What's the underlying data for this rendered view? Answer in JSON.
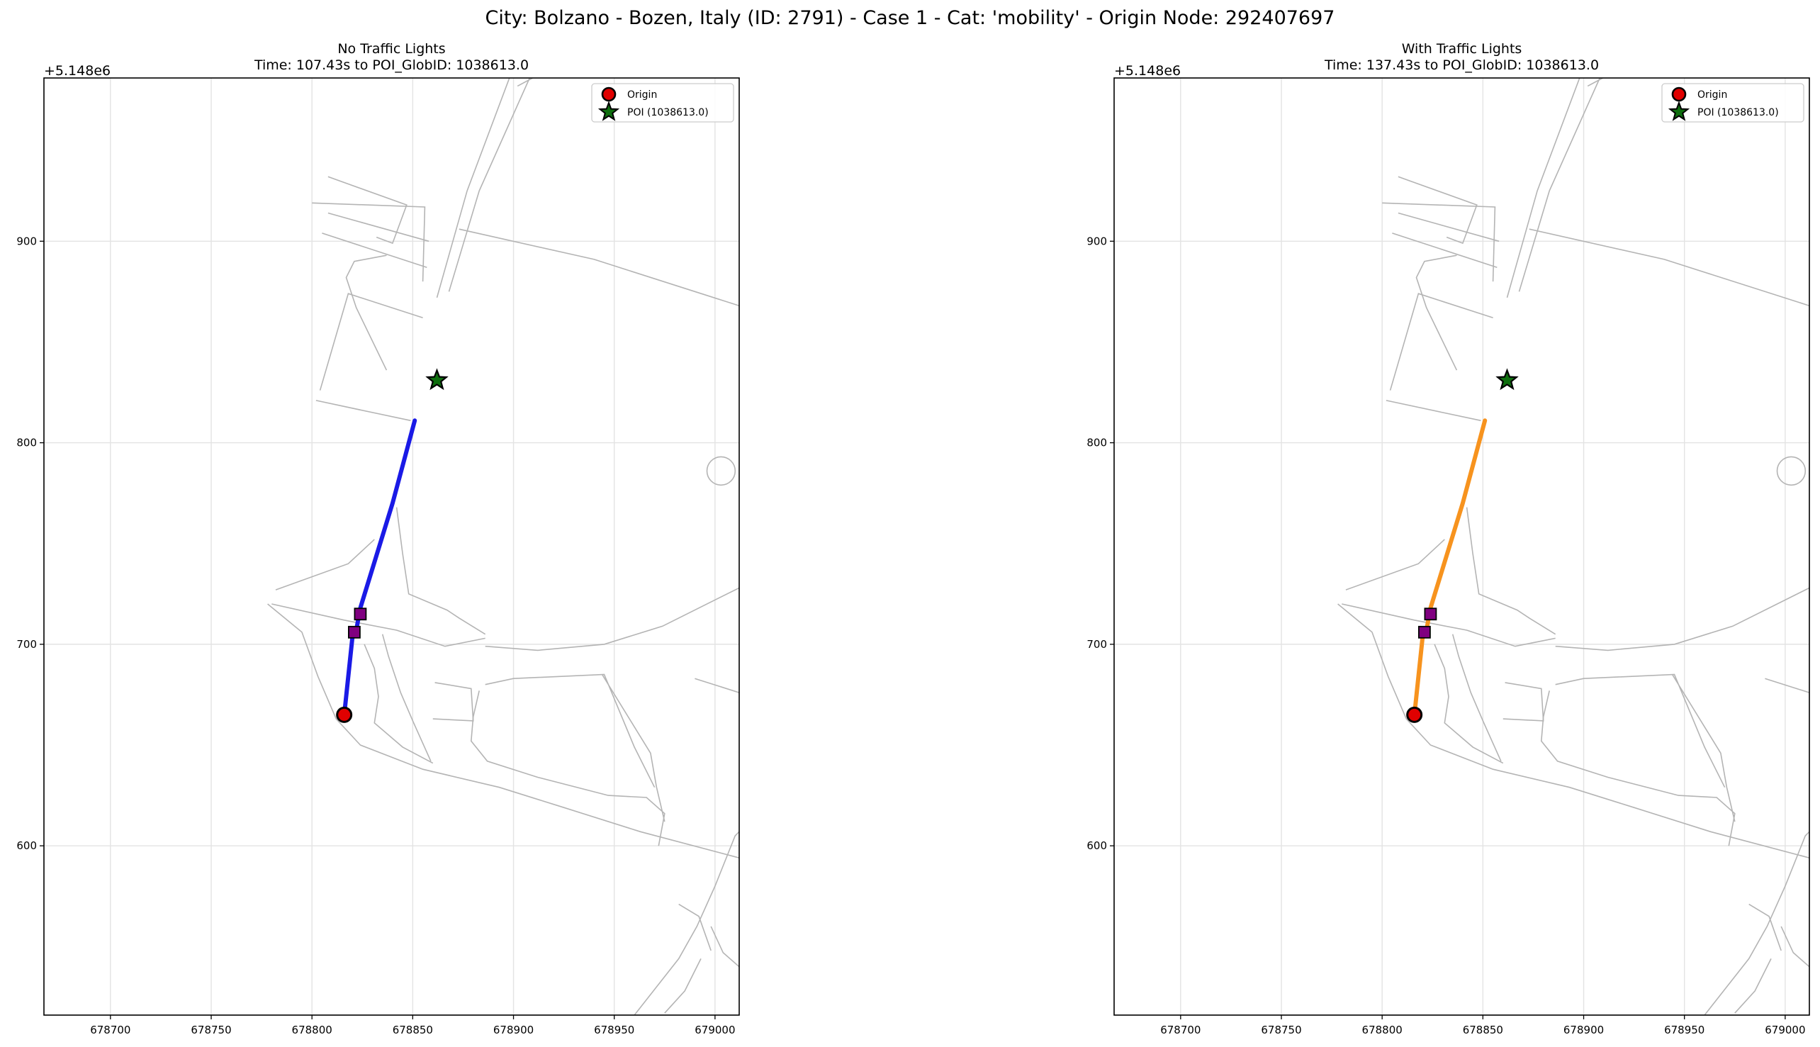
{
  "figure": {
    "suptitle": "City: Bolzano - Bozen, Italy (ID: 2791) - Case 1 - Cat: 'mobility' - Origin Node: 292407697"
  },
  "chart_data": [
    {
      "type": "scatter",
      "title": "No Traffic Lights",
      "subtitle": "Time: 107.43s to POI_GlobID: 1038613.0",
      "xlabel": "",
      "ylabel": "",
      "xlim": [
        678667,
        679012
      ],
      "ylim": [
        5148516,
        5148981
      ],
      "y_offset_label": "+5.148e6",
      "xticks": [
        "678700",
        "678750",
        "678800",
        "678850",
        "678900",
        "678950",
        "679000"
      ],
      "yticks": [
        "600",
        "700",
        "800",
        "900"
      ],
      "grid": true,
      "legend_position": "top-right",
      "legend": [
        "Origin",
        "POI (1038613.0)"
      ],
      "route_color": "#1a1ae6",
      "route": [
        [
          678816,
          5148665
        ],
        [
          678818,
          5148684
        ],
        [
          678820,
          5148703
        ],
        [
          678822,
          5148707
        ],
        [
          678824,
          5148718
        ],
        [
          678840,
          5148770
        ],
        [
          678851,
          5148811
        ]
      ],
      "origin": {
        "name": "Origin",
        "x": 678816,
        "y": 5148665,
        "color": "#e00000"
      },
      "poi": {
        "name": "POI (1038613.0)",
        "x": 678862,
        "y": 5148831,
        "color": "#0e6e0e"
      },
      "traffic_lights": [
        {
          "x": 678821,
          "y": 5148706
        },
        {
          "x": 678824,
          "y": 5148715
        }
      ]
    },
    {
      "type": "scatter",
      "title": "With Traffic Lights",
      "subtitle": "Time: 137.43s to POI_GlobID: 1038613.0",
      "xlabel": "",
      "ylabel": "",
      "xlim": [
        678667,
        679012
      ],
      "ylim": [
        5148516,
        5148981
      ],
      "y_offset_label": "+5.148e6",
      "xticks": [
        "678700",
        "678750",
        "678800",
        "678850",
        "678900",
        "678950",
        "679000"
      ],
      "yticks": [
        "600",
        "700",
        "800",
        "900"
      ],
      "grid": true,
      "legend_position": "top-right",
      "legend": [
        "Origin",
        "POI (1038613.0)"
      ],
      "route_color": "#f7931e",
      "route": [
        [
          678816,
          5148665
        ],
        [
          678818,
          5148684
        ],
        [
          678820,
          5148703
        ],
        [
          678822,
          5148707
        ],
        [
          678824,
          5148718
        ],
        [
          678840,
          5148770
        ],
        [
          678851,
          5148811
        ]
      ],
      "origin": {
        "name": "Origin",
        "x": 678816,
        "y": 5148665,
        "color": "#e00000"
      },
      "poi": {
        "name": "POI (1038613.0)",
        "x": 678862,
        "y": 5148831,
        "color": "#0e6e0e"
      },
      "traffic_lights": [
        {
          "x": 678821,
          "y": 5148706
        },
        {
          "x": 678824,
          "y": 5148715
        }
      ]
    }
  ],
  "road_network": {
    "color": "#b4b4b4",
    "roads": [
      [
        [
          678862,
          5148872
        ],
        [
          678877,
          5148925
        ],
        [
          678898,
          5148981
        ]
      ],
      [
        [
          678868,
          5148875
        ],
        [
          678883,
          5148925
        ],
        [
          678908,
          5148981
        ]
      ],
      [
        [
          678902,
          5148977
        ],
        [
          678917,
          5148985
        ]
      ],
      [
        [
          678837,
          5148893
        ],
        [
          678821,
          5148890
        ],
        [
          678817,
          5148882
        ],
        [
          678822,
          5148867
        ],
        [
          678837,
          5148836
        ]
      ],
      [
        [
          678805,
          5148904
        ],
        [
          678857,
          5148887
        ]
      ],
      [
        [
          678808,
          5148914
        ],
        [
          678858,
          5148900
        ]
      ],
      [
        [
          678800,
          5148919
        ],
        [
          678856,
          5148917
        ],
        [
          678855,
          5148880
        ]
      ],
      [
        [
          678808,
          5148932
        ],
        [
          678847,
          5148918
        ],
        [
          678840,
          5148899
        ],
        [
          678832,
          5148902
        ]
      ],
      [
        [
          678873,
          5148906
        ],
        [
          678940,
          5148891
        ],
        [
          679012,
          5148868
        ]
      ],
      [
        [
          678855,
          5148862
        ],
        [
          678818,
          5148874
        ],
        [
          678804,
          5148826
        ]
      ],
      [
        [
          678802,
          5148821
        ],
        [
          678830,
          5148815
        ],
        [
          678849,
          5148811
        ]
      ],
      [
        [
          678842,
          5148768
        ],
        [
          678845,
          5148745
        ],
        [
          678848,
          5148725
        ],
        [
          678867,
          5148717
        ],
        [
          678873,
          5148713
        ],
        [
          678886,
          5148705
        ]
      ],
      [
        [
          678780,
          5148720
        ],
        [
          678816,
          5148712
        ],
        [
          678842,
          5148707
        ],
        [
          678866,
          5148699
        ],
        [
          678886,
          5148703
        ]
      ],
      [
        [
          678782,
          5148727
        ],
        [
          678818,
          5148740
        ],
        [
          678831,
          5148752
        ]
      ],
      [
        [
          678778,
          5148720
        ],
        [
          678795,
          5148706
        ],
        [
          678803,
          5148684
        ],
        [
          678812,
          5148663
        ],
        [
          678824,
          5148650
        ],
        [
          678855,
          5148638
        ],
        [
          678893,
          5148629
        ],
        [
          678925,
          5148619
        ],
        [
          678963,
          5148607
        ],
        [
          679012,
          5148594
        ]
      ],
      [
        [
          678886,
          5148699
        ],
        [
          678912,
          5148697
        ],
        [
          678945,
          5148700
        ],
        [
          678974,
          5148709
        ],
        [
          679012,
          5148728
        ]
      ],
      [
        [
          678826,
          5148700
        ],
        [
          678831,
          5148688
        ],
        [
          678833,
          5148674
        ],
        [
          678831,
          5148661
        ],
        [
          678845,
          5148649
        ],
        [
          678860,
          5148641
        ]
      ],
      [
        [
          678835,
          5148705
        ],
        [
          678838,
          5148694
        ],
        [
          678844,
          5148676
        ],
        [
          678850,
          5148662
        ],
        [
          678859,
          5148642
        ]
      ],
      [
        [
          678861,
          5148681
        ],
        [
          678879,
          5148678
        ],
        [
          678880,
          5148662
        ],
        [
          678860,
          5148663
        ]
      ],
      [
        [
          678886,
          5148680
        ],
        [
          678900,
          5148683
        ],
        [
          678945,
          5148685
        ],
        [
          678960,
          5148649
        ],
        [
          678970,
          5148629
        ]
      ],
      [
        [
          678883,
          5148677
        ],
        [
          678880,
          5148664
        ],
        [
          678879,
          5148652
        ],
        [
          678887,
          5148642
        ],
        [
          678912,
          5148634
        ],
        [
          678947,
          5148625
        ],
        [
          678966,
          5148624
        ],
        [
          678975,
          5148616
        ],
        [
          678972,
          5148600
        ]
      ],
      [
        [
          678944,
          5148685
        ],
        [
          678968,
          5148646
        ],
        [
          678971,
          5148629
        ],
        [
          678975,
          5148612
        ]
      ],
      [
        [
          678990,
          5148683
        ],
        [
          679012,
          5148676
        ]
      ],
      [
        [
          678982,
          5148571
        ],
        [
          678992,
          5148565
        ],
        [
          678998,
          5148548
        ]
      ],
      [
        [
          678960,
          5148516
        ],
        [
          678982,
          5148544
        ],
        [
          678991,
          5148560
        ],
        [
          679000,
          5148580
        ],
        [
          679010,
          5148605
        ],
        [
          679012,
          5148607
        ]
      ],
      [
        [
          678975,
          5148517
        ],
        [
          678985,
          5148528
        ],
        [
          678993,
          5148544
        ]
      ],
      [
        [
          678998,
          5148560
        ],
        [
          679004,
          5148547
        ],
        [
          679012,
          5148540
        ]
      ]
    ],
    "circle": {
      "x": 679003,
      "y": 5148786,
      "r": 7
    }
  }
}
